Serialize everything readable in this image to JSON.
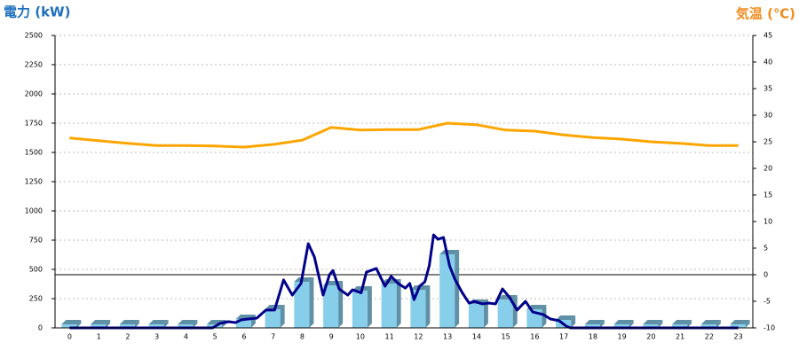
{
  "chart_data": {
    "type": "bar-line",
    "y_label": "電力 (kW)",
    "y2_label": "気温 (℃)",
    "categories": [
      0,
      1,
      2,
      3,
      4,
      5,
      6,
      7,
      8,
      9,
      10,
      11,
      12,
      13,
      14,
      15,
      16,
      17,
      18,
      19,
      20,
      21,
      22,
      23
    ],
    "ylim": [
      0,
      2500
    ],
    "yticks": [
      0,
      250,
      500,
      750,
      1000,
      1250,
      1500,
      1750,
      2000,
      2250,
      2500
    ],
    "y2lim": [
      -10,
      45
    ],
    "y2ticks": [
      -10,
      -5,
      0,
      5,
      10,
      15,
      20,
      25,
      30,
      35,
      40,
      45
    ],
    "grid": true,
    "reference_line": {
      "axis": "y2",
      "value": 0,
      "color": "#000000"
    },
    "series": [
      {
        "type": "bar",
        "color": "#87ceeb",
        "values": [
          30,
          30,
          30,
          30,
          30,
          30,
          76,
          159,
          394,
          364,
          318,
          379,
          326,
          629,
          205,
          242,
          159,
          68,
          30,
          30,
          30,
          30,
          30,
          30
        ]
      },
      {
        "type": "line",
        "color": "#00008b",
        "x": [
          0,
          4.92,
          5.17,
          5.47,
          5.71,
          5.9,
          6.14,
          6.44,
          6.75,
          7.05,
          7.36,
          7.66,
          7.96,
          8.21,
          8.42,
          8.72,
          8.94,
          9.06,
          9.27,
          9.57,
          9.73,
          10.03,
          10.21,
          10.55,
          10.85,
          11.06,
          11.31,
          11.55,
          11.7,
          11.85,
          12.04,
          12.22,
          12.37,
          12.52,
          12.67,
          12.86,
          13.07,
          13.25,
          13.5,
          13.74,
          13.92,
          14.19,
          14.41,
          14.65,
          14.89,
          15.14,
          15.39,
          15.68,
          15.93,
          16.29,
          16.54,
          16.84,
          17.08,
          17.23,
          23
        ],
        "values": [
          0,
          0,
          38,
          53,
          45,
          68,
          76,
          83,
          152,
          152,
          410,
          280,
          380,
          720,
          606,
          280,
          455,
          490,
          333,
          280,
          325,
          300,
          477,
          508,
          356,
          440,
          378,
          340,
          380,
          242,
          356,
          394,
          530,
          795,
          757,
          773,
          530,
          417,
          303,
          212,
          227,
          205,
          212,
          205,
          333,
          258,
          152,
          227,
          136,
          114,
          76,
          61,
          15,
          0,
          0
        ]
      },
      {
        "type": "line",
        "axis": "y2",
        "color": "#ffa500",
        "values": [
          25.7,
          25.2,
          24.7,
          24.3,
          24.3,
          24.2,
          24,
          24.5,
          25.3,
          27.7,
          27.2,
          27.3,
          27.3,
          28.5,
          28.2,
          27.2,
          27,
          26.3,
          25.8,
          25.5,
          25,
          24.7,
          24.3,
          24.3
        ]
      }
    ]
  }
}
